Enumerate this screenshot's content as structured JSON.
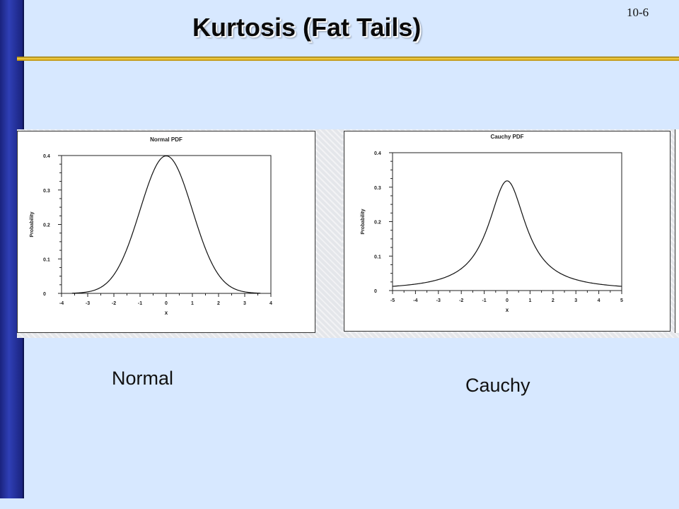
{
  "slide": {
    "title": "Kurtosis (Fat Tails)",
    "page_number": "10-6",
    "label_normal": "Normal",
    "label_cauchy": "Cauchy",
    "colors": {
      "sidebar": "#1f2a8c",
      "background": "#d7e8ff",
      "rule": "#e8b820"
    }
  },
  "chart_data": [
    {
      "type": "line",
      "title": "Normal PDF",
      "xlabel": "x",
      "ylabel": "Probability",
      "xlim": [
        -4,
        4
      ],
      "ylim": [
        0,
        0.4
      ],
      "xticks": [
        -4,
        -3,
        -2,
        -1,
        0,
        1,
        2,
        3,
        4
      ],
      "yticks": [
        0,
        0.1,
        0.2,
        0.3,
        0.4
      ],
      "ytick_labels": [
        "0",
        "0.1",
        "0.2",
        "0.3",
        "0.4"
      ],
      "grid": false,
      "series": [
        {
          "function": "normal",
          "x_range": [
            -3.6,
            3.6
          ],
          "peak": 0.399
        }
      ]
    },
    {
      "type": "line",
      "title": "Cauchy PDF",
      "xlabel": "x",
      "ylabel": "Probability",
      "xlim": [
        -5,
        5
      ],
      "ylim": [
        0,
        0.4
      ],
      "xticks": [
        -5,
        -4,
        -3,
        -2,
        -1,
        0,
        1,
        2,
        3,
        4,
        5
      ],
      "yticks": [
        0,
        0.1,
        0.2,
        0.3,
        0.4
      ],
      "ytick_labels": [
        "0",
        "0.1",
        "0.2",
        "0.3",
        "0.4"
      ],
      "grid": false,
      "series": [
        {
          "function": "cauchy",
          "x_range": [
            -5,
            5
          ],
          "peak": 0.318
        }
      ]
    }
  ]
}
